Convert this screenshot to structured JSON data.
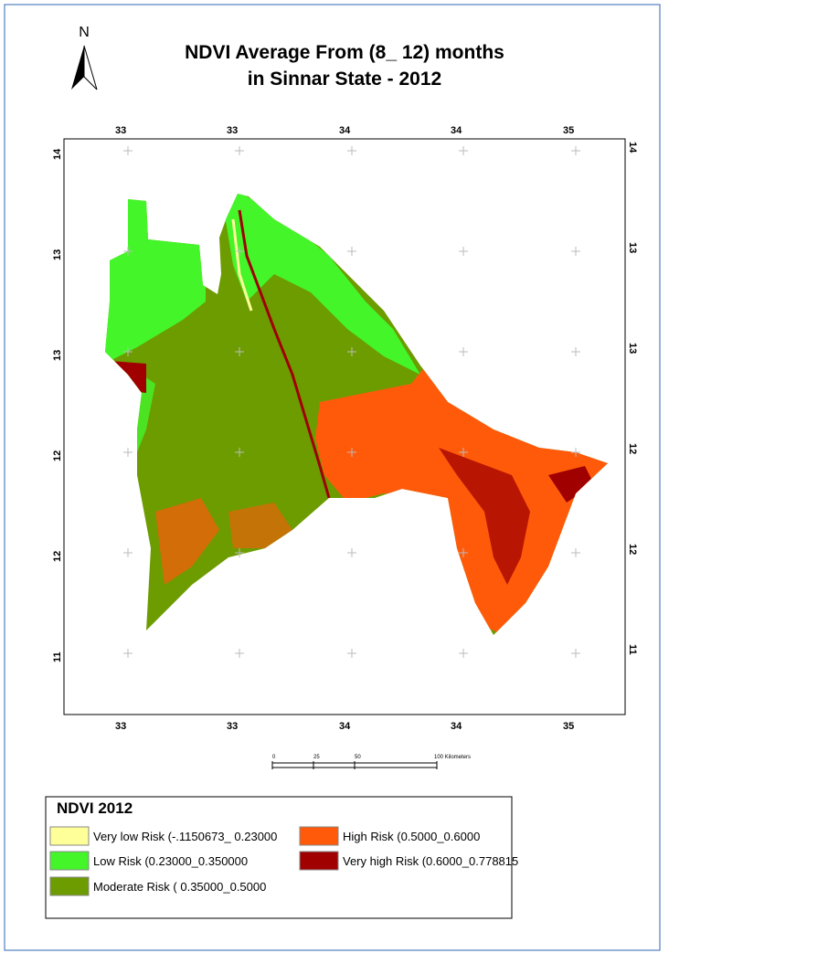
{
  "title": {
    "line1": "NDVI Average From (8_ 12) months",
    "line2": "in Sinnar State - 2012"
  },
  "north_arrow": "N",
  "grid_labels": {
    "top": [
      33,
      33,
      34,
      34,
      35
    ],
    "bottom": [
      33,
      33,
      34,
      34,
      35
    ],
    "left": [
      14,
      13,
      13,
      12,
      12,
      11
    ],
    "right": [
      14,
      13,
      13,
      12,
      12,
      11
    ]
  },
  "scale_bar": {
    "labels": [
      0,
      25,
      50,
      "100 Kilometers"
    ]
  },
  "legend": {
    "title": "NDVI 2012",
    "items": [
      {
        "label": "Very low Risk (-.1150673_ 0.23000",
        "color": "#ffff99"
      },
      {
        "label": "Low Risk  (0.23000_0.350000",
        "color": "#44f52a"
      },
      {
        "label": "Moderate Risk ( 0.35000_0.5000",
        "color": "#6c9c00"
      },
      {
        "label": "High Risk  (0.5000_0.6000",
        "color": "#ff5a0a"
      },
      {
        "label": "Very high Risk  (0.6000_0.778815",
        "color": "#a00000"
      }
    ]
  }
}
